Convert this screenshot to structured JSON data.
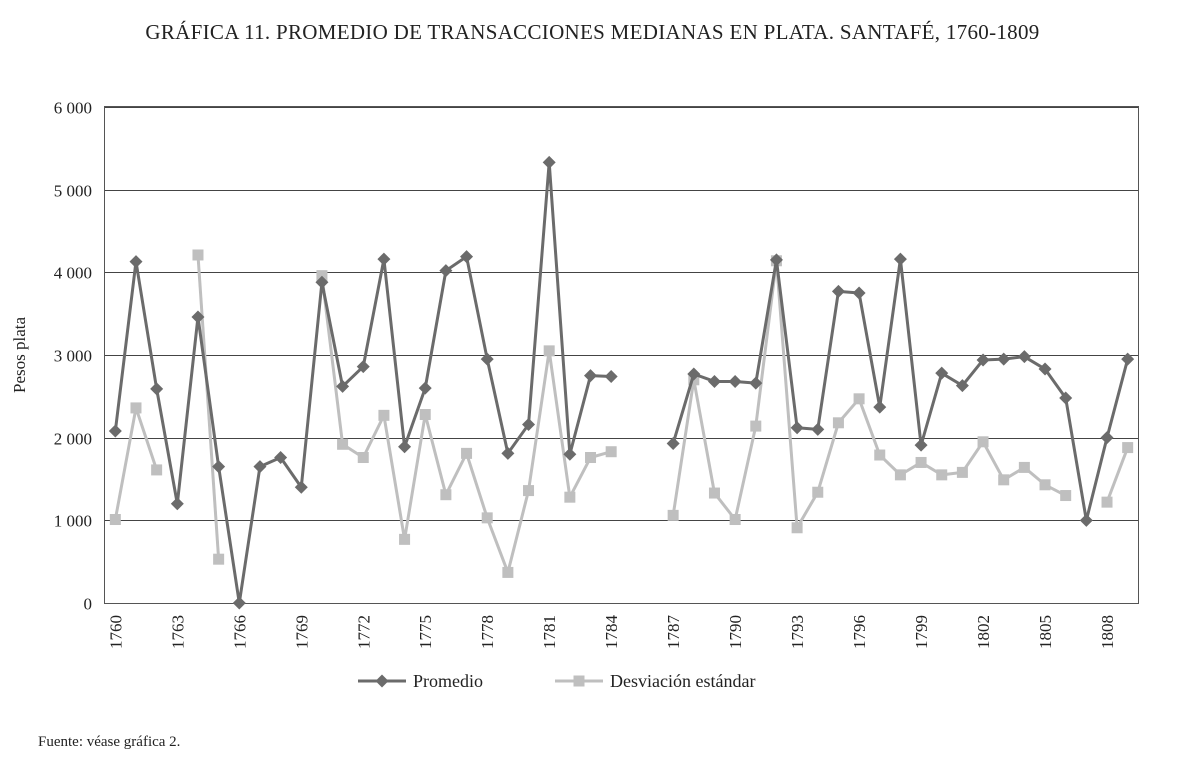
{
  "chart_data": {
    "type": "line",
    "title": "GRÁFICA 11. PROMEDIO DE TRANSACCIONES MEDIANAS EN PLATA. SANTAFÉ, 1760-1809",
    "xlabel": "",
    "ylabel": "Pesos plata",
    "x": [
      1760,
      1761,
      1762,
      1763,
      1764,
      1765,
      1766,
      1767,
      1768,
      1769,
      1770,
      1771,
      1772,
      1773,
      1774,
      1775,
      1776,
      1777,
      1778,
      1779,
      1780,
      1781,
      1782,
      1783,
      1784,
      1785,
      1786,
      1787,
      1788,
      1789,
      1790,
      1791,
      1792,
      1793,
      1794,
      1795,
      1796,
      1797,
      1798,
      1799,
      1800,
      1801,
      1802,
      1803,
      1804,
      1805,
      1806,
      1807,
      1808,
      1809
    ],
    "xticks": [
      "1760",
      "1763",
      "1766",
      "1769",
      "1772",
      "1775",
      "1778",
      "1781",
      "1784",
      "1787",
      "1790",
      "1793",
      "1796",
      "1799",
      "1802",
      "1805",
      "1808"
    ],
    "yticks": [
      "0",
      "1 000",
      "2 000",
      "3 000",
      "4 000",
      "5 000",
      "6 000"
    ],
    "ylim": [
      0,
      6000
    ],
    "grid": true,
    "legend_position": "bottom",
    "series": [
      {
        "name": "Promedio",
        "color": "#6b6b6b",
        "marker": "diamond",
        "values": [
          2080,
          4130,
          2590,
          1200,
          3460,
          1650,
          0,
          1650,
          1760,
          1400,
          3880,
          2620,
          2860,
          4160,
          1890,
          2600,
          4020,
          4190,
          2950,
          1810,
          2160,
          5330,
          1800,
          2750,
          2740,
          null,
          null,
          1930,
          2770,
          2680,
          2680,
          2660,
          4150,
          2120,
          2100,
          3770,
          3750,
          2370,
          4160,
          1910,
          2780,
          2630,
          2940,
          2950,
          2980,
          2830,
          2480,
          1000,
          2000,
          2950
        ]
      },
      {
        "name": "Desviación estándar",
        "color": "#bfbfbf",
        "marker": "square",
        "values": [
          1010,
          2360,
          1610,
          null,
          4210,
          530,
          null,
          null,
          null,
          null,
          3960,
          1920,
          1760,
          2270,
          770,
          2280,
          1310,
          1810,
          1030,
          370,
          1360,
          3050,
          1280,
          1760,
          1830,
          null,
          null,
          1060,
          2700,
          1330,
          1010,
          2140,
          4140,
          910,
          1340,
          2180,
          2470,
          1790,
          1550,
          1700,
          1550,
          1580,
          1950,
          1490,
          1640,
          1430,
          1300,
          null,
          1220,
          1880
        ]
      }
    ]
  },
  "source": "Fuente: véase gráfica 2."
}
